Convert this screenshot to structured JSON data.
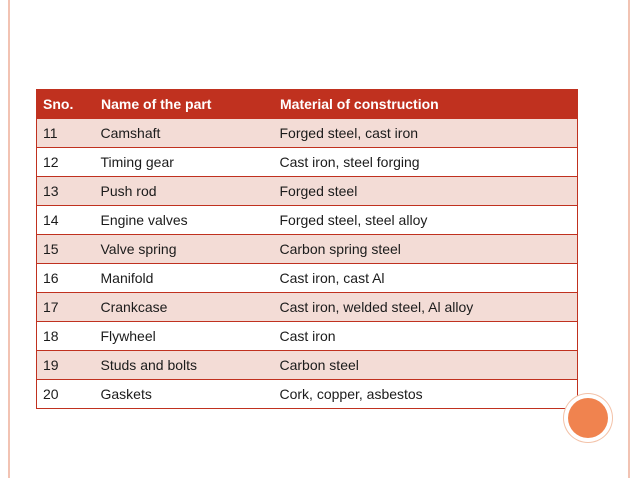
{
  "table": {
    "headers": [
      "Sno.",
      "Name of the part",
      "Material of construction"
    ],
    "rows": [
      [
        "11",
        "Camshaft",
        "Forged steel, cast iron"
      ],
      [
        "12",
        "Timing gear",
        "Cast iron, steel forging"
      ],
      [
        "13",
        "Push rod",
        "Forged steel"
      ],
      [
        "14",
        "Engine valves",
        "Forged steel, steel alloy"
      ],
      [
        "15",
        "Valve spring",
        "Carbon spring steel"
      ],
      [
        "16",
        "Manifold",
        "Cast iron, cast Al"
      ],
      [
        "17",
        "Crankcase",
        "Cast iron, welded steel, Al alloy"
      ],
      [
        "18",
        "Flywheel",
        "Cast iron"
      ],
      [
        "19",
        "Studs and bolts",
        "Carbon steel"
      ],
      [
        "20",
        "Gaskets",
        "Cork, copper, asbestos"
      ]
    ]
  },
  "colors": {
    "header_background": "#c0311f",
    "odd_row_background": "#f3dcd6",
    "frame_border": "#f2c3b3",
    "accent_circle": "#f0834f"
  }
}
